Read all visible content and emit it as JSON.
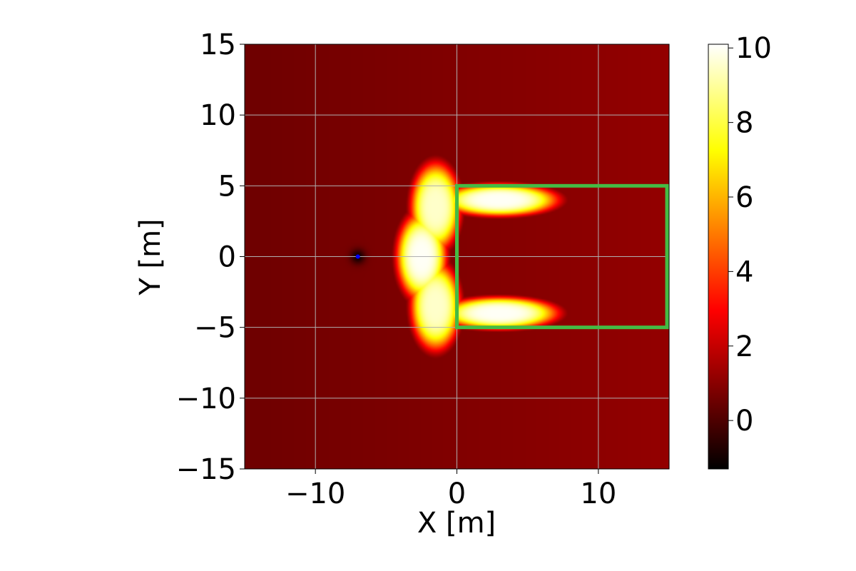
{
  "chart_data": {
    "type": "heatmap",
    "title": "",
    "xlabel": "X [m]",
    "ylabel": "Y [m]",
    "xlim": [
      -15,
      15
    ],
    "ylim": [
      -15,
      15
    ],
    "x_ticks": [
      -10,
      0,
      10
    ],
    "x_tick_labels": [
      "−10",
      "0",
      "10"
    ],
    "y_ticks": [
      -15,
      -10,
      -5,
      0,
      5,
      10,
      15
    ],
    "y_tick_labels": [
      "−15",
      "−10",
      "−5",
      "0",
      "5",
      "10",
      "15"
    ],
    "grid": true,
    "colormap": "hot",
    "colorbar": {
      "vmin": -1.3,
      "vmax": 10.1,
      "ticks": [
        0,
        2,
        4,
        6,
        8,
        10
      ],
      "tick_labels": [
        "0",
        "2",
        "4",
        "6",
        "8",
        "10"
      ]
    },
    "background_level": 0.5,
    "hotspots": [
      {
        "x": -2.5,
        "y": 0,
        "peak": 10.0
      },
      {
        "x": 3.0,
        "y": 4.0,
        "peak": 10.0
      },
      {
        "x": 3.0,
        "y": -4.0,
        "peak": 10.0
      },
      {
        "x": -1.5,
        "y": 3.5,
        "peak": 9.5
      },
      {
        "x": -1.5,
        "y": -3.5,
        "peak": 9.5
      }
    ],
    "minimum_point": {
      "x": -7.0,
      "y": 0.0,
      "value": -1.3
    },
    "marker": {
      "x": -7.0,
      "y": 0.0,
      "color": "#0000ff"
    },
    "region_rectangle": {
      "x_range": [
        0,
        15
      ],
      "y_range": [
        -5,
        5
      ],
      "color": "#44bb44"
    }
  }
}
